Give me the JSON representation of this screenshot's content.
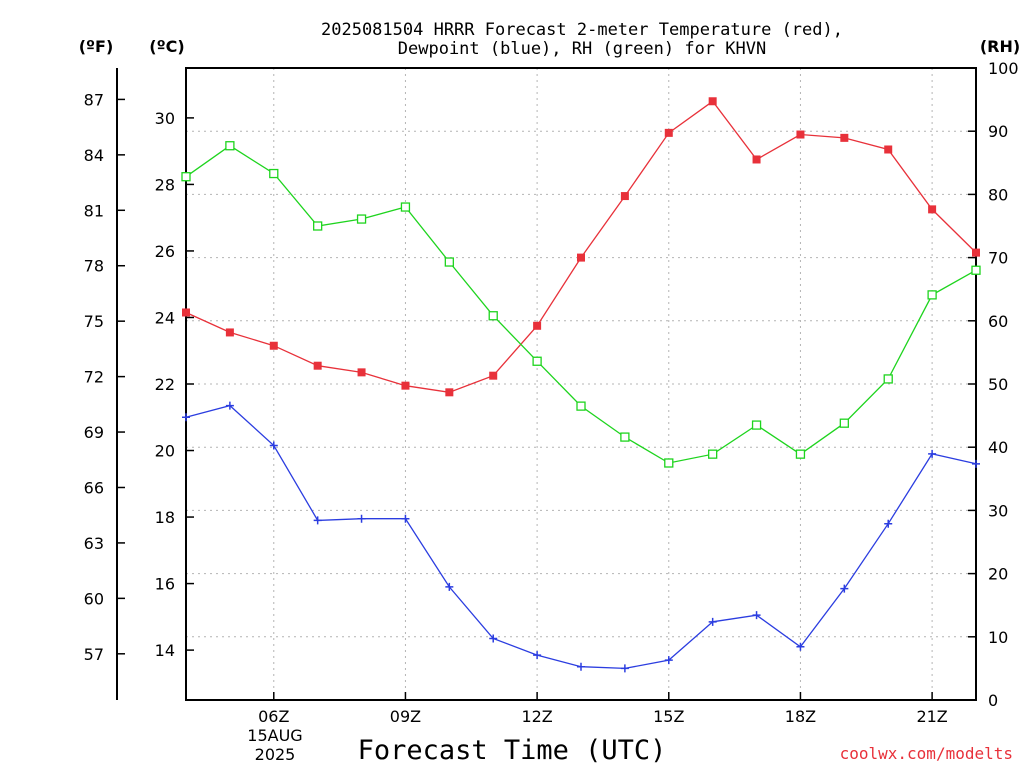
{
  "title": {
    "line1": "2025081504 HRRR Forecast 2-meter Temperature (red),",
    "line2": "Dewpoint (blue), RH (green) for KHVN"
  },
  "units": {
    "fahrenheit": "(ºF)",
    "celsius": "(ºC)",
    "rh": "(RH)"
  },
  "date_label": {
    "day": "15AUG",
    "year": "2025"
  },
  "credit": "coolwx.com/modelts",
  "colors": {
    "temperature": "#e8313a",
    "dewpoint": "#2b3de0",
    "rh": "#1ed41e",
    "grid": "#b4b4b4"
  },
  "chart_data": {
    "type": "line",
    "title": "2025081504 HRRR Forecast 2-meter Temperature (red), Dewpoint (blue), RH (green) for KHVN",
    "xlabel": "Forecast Time (UTC)",
    "x_hours": [
      4,
      5,
      6,
      7,
      8,
      9,
      10,
      11,
      12,
      13,
      14,
      15,
      16,
      17,
      18,
      19,
      20,
      21,
      22
    ],
    "x_tick_hours": [
      6,
      9,
      12,
      15,
      18,
      21
    ],
    "x_tick_labels": [
      "06Z",
      "09Z",
      "12Z",
      "15Z",
      "18Z",
      "21Z"
    ],
    "xlim_hours": [
      4,
      22
    ],
    "y_left_celsius": {
      "label": "(ºC)",
      "range": [
        12.5,
        31.5
      ],
      "ticks": [
        14,
        16,
        18,
        20,
        22,
        24,
        26,
        28,
        30
      ]
    },
    "y_far_left_fahrenheit": {
      "label": "(ºF)",
      "ticks": [
        57,
        60,
        63,
        66,
        69,
        72,
        75,
        78,
        81,
        84,
        87
      ]
    },
    "y_right_rh": {
      "label": "(RH)",
      "range": [
        0,
        100
      ],
      "ticks": [
        0,
        10,
        20,
        30,
        40,
        50,
        60,
        70,
        80,
        90,
        100
      ]
    },
    "grid": true,
    "series": [
      {
        "name": "Temperature",
        "axis": "celsius",
        "marker": "filled-square",
        "color": "#e8313a",
        "values": [
          24.15,
          23.55,
          23.15,
          22.55,
          22.35,
          21.95,
          21.75,
          22.25,
          23.75,
          25.8,
          27.65,
          29.55,
          30.5,
          28.75,
          29.5,
          29.4,
          29.05,
          27.25,
          25.95
        ]
      },
      {
        "name": "Dewpoint",
        "axis": "celsius",
        "marker": "plus",
        "color": "#2b3de0",
        "values": [
          21.0,
          21.35,
          20.15,
          17.9,
          17.95,
          17.95,
          15.9,
          14.35,
          13.85,
          13.5,
          13.45,
          13.7,
          14.85,
          15.05,
          14.1,
          15.85,
          17.8,
          19.9,
          19.6
        ]
      },
      {
        "name": "RH",
        "axis": "rh",
        "marker": "open-square",
        "color": "#1ed41e",
        "values": [
          82.8,
          87.7,
          83.3,
          75.0,
          76.1,
          78.0,
          69.3,
          60.8,
          53.6,
          46.5,
          41.6,
          37.5,
          38.9,
          43.5,
          38.9,
          43.8,
          50.8,
          64.1,
          68.0
        ]
      }
    ]
  }
}
